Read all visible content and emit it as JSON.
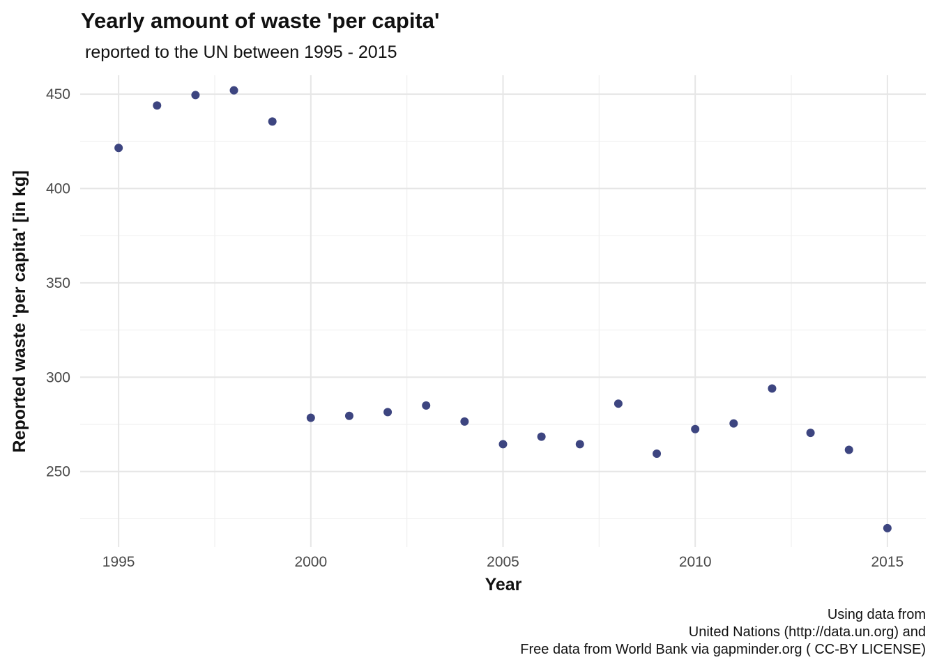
{
  "chart_data": {
    "type": "scatter",
    "title": "Yearly amount of waste 'per capita'",
    "subtitle": "reported to the UN between 1995 - 2015",
    "xlabel": "Year",
    "ylabel": "Reported waste 'per capita' [in kg]",
    "caption": [
      "Using data from",
      "United Nations (http://data.un.org) and",
      "Free data from World Bank via gapminder.org ( CC-BY LICENSE)"
    ],
    "xlim": [
      1994,
      2016
    ],
    "ylim": [
      210,
      460
    ],
    "x_ticks": [
      1995,
      2000,
      2005,
      2010,
      2015
    ],
    "x_tick_labels": [
      "1995",
      "2000",
      "2005",
      "2010",
      "2015"
    ],
    "y_ticks": [
      250,
      300,
      350,
      400,
      450
    ],
    "y_tick_labels": [
      "250",
      "300",
      "350",
      "400",
      "450"
    ],
    "grid": true,
    "point_color": "#3d4580",
    "x": [
      1995,
      1996,
      1997,
      1998,
      1999,
      2000,
      2001,
      2002,
      2003,
      2004,
      2005,
      2006,
      2007,
      2008,
      2009,
      2010,
      2011,
      2012,
      2013,
      2014,
      2015
    ],
    "y": [
      421.5,
      444,
      449.5,
      452,
      435.5,
      278.5,
      279.5,
      281.5,
      285,
      276.5,
      264.5,
      268.5,
      264.5,
      286,
      259.5,
      272.5,
      275.5,
      294,
      270.5,
      261.5,
      220
    ]
  }
}
